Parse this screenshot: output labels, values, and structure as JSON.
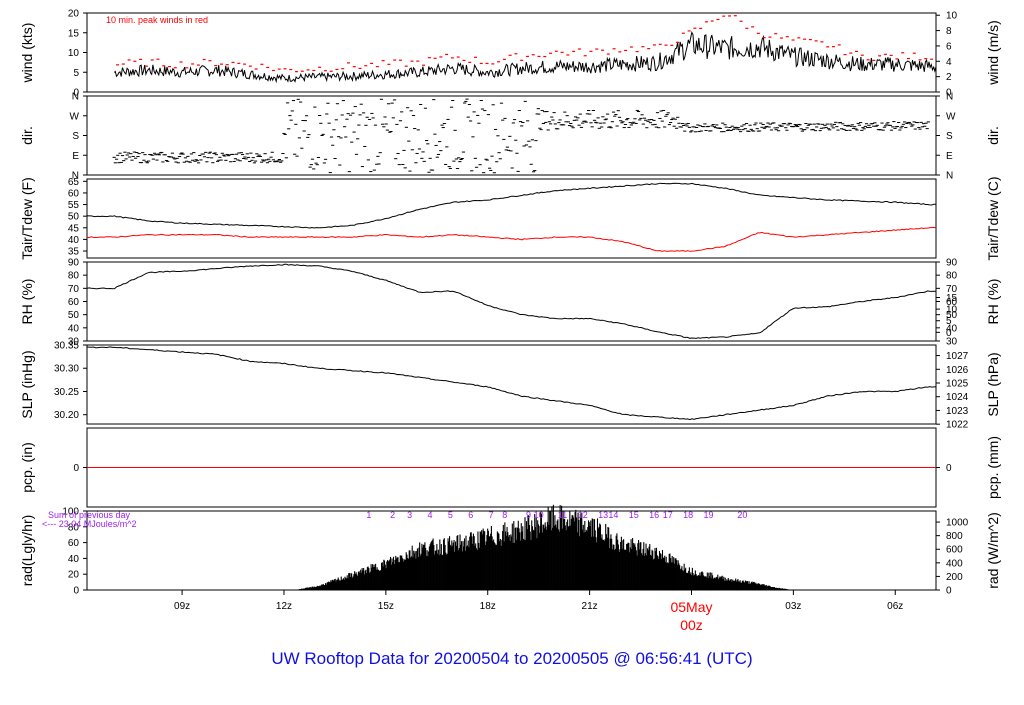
{
  "footer_title": "UW Rooftop Data for 20200504  to  20200505 @ 06:56:41  (UTC)",
  "colors": {
    "series": "#000000",
    "peak": "#ff0000",
    "tdew": "#ff0000",
    "pcp": "#ff0000",
    "annot": "#a020f0",
    "title": "#1010e0",
    "axes": "#000000"
  },
  "chart_data": [
    {
      "id": "wind",
      "type": "line",
      "ylabel_left": "wind (kts)",
      "ylabel_right": "wind (m/s)",
      "ylim": [
        0,
        20
      ],
      "yticks_left": [
        0,
        5,
        10,
        15,
        20
      ],
      "yticks_right": [
        0,
        2,
        4,
        6,
        8,
        10
      ],
      "right_scale": 0.51444,
      "annotation": "10 min. peak winds in red",
      "series": [
        {
          "role": "speed",
          "x": [
            7,
            8,
            9,
            10,
            11,
            12,
            13,
            14,
            15,
            16,
            17,
            18,
            19,
            20,
            21,
            22,
            23,
            24,
            25,
            26,
            27,
            28,
            29,
            30,
            31
          ],
          "values": [
            5,
            5.5,
            5,
            5.5,
            4.5,
            3.5,
            3.8,
            4,
            4.5,
            5,
            6,
            5,
            6,
            6.5,
            6.5,
            7,
            7.5,
            12,
            11,
            11.5,
            9,
            8,
            7,
            7,
            6.5
          ]
        },
        {
          "role": "peak",
          "x": [
            7,
            8,
            9,
            10,
            11,
            12,
            13,
            14,
            15,
            16,
            17,
            18,
            19,
            20,
            21,
            22,
            23,
            24,
            25,
            26,
            27,
            28,
            29,
            30,
            31
          ],
          "values": [
            7,
            7.5,
            7,
            7.5,
            7,
            5.5,
            6,
            6.5,
            7,
            7.5,
            9,
            7.5,
            9,
            10,
            10,
            11,
            11,
            15,
            20,
            15,
            13,
            12,
            9,
            9,
            9
          ]
        }
      ]
    },
    {
      "id": "dir",
      "type": "scatter",
      "ylabel_left": "dir.",
      "ylabel_right": "dir.",
      "ylim": [
        0,
        360
      ],
      "ytick_labels": [
        "N",
        "E",
        "S",
        "W",
        "N"
      ],
      "ytick_values": [
        0,
        90,
        180,
        270,
        360
      ],
      "segments": [
        {
          "x": [
            7,
            12
          ],
          "values": [
            80,
            80
          ],
          "spread": 25
        },
        {
          "x": [
            12,
            19.5
          ],
          "values": [
            180,
            180
          ],
          "spread": 170
        },
        {
          "x": [
            19.5,
            23.8
          ],
          "values": [
            250,
            250
          ],
          "spread": 45
        },
        {
          "x": [
            23.8,
            31
          ],
          "values": [
            215,
            225
          ],
          "spread": 20
        }
      ]
    },
    {
      "id": "temp",
      "type": "line",
      "ylabel_left": "Tair/Tdew (F)",
      "ylabel_right": "Tair/Tdew (C)",
      "ylim": [
        32,
        66
      ],
      "yticks_left": [
        35,
        40,
        45,
        50,
        55,
        60,
        65
      ],
      "yticks_right": [
        0,
        5,
        10,
        15
      ],
      "series": [
        {
          "role": "tair",
          "x": [
            7,
            8,
            9,
            10,
            11,
            12,
            13,
            14,
            15,
            16,
            17,
            18,
            19,
            20,
            21,
            22,
            23,
            24,
            25,
            26,
            27,
            28,
            29,
            30,
            31
          ],
          "values": [
            50,
            48,
            47,
            46.5,
            46,
            45.5,
            45,
            46,
            49,
            53,
            56,
            57,
            59,
            61,
            62,
            63,
            64,
            64,
            62,
            59,
            58,
            57,
            56.5,
            56,
            55
          ]
        },
        {
          "role": "tdew",
          "x": [
            7,
            8,
            9,
            10,
            11,
            12,
            13,
            14,
            15,
            16,
            17,
            18,
            19,
            20,
            21,
            22,
            23,
            24,
            25,
            26,
            27,
            28,
            29,
            30,
            31
          ],
          "values": [
            41,
            42,
            42,
            42,
            41,
            41,
            41,
            41,
            42,
            41,
            42,
            41,
            40,
            41,
            41,
            39,
            35,
            35,
            37,
            43,
            41,
            42,
            43,
            44,
            45
          ]
        }
      ]
    },
    {
      "id": "rh",
      "type": "line",
      "ylabel_left": "RH (%)",
      "ylabel_right": "RH (%)",
      "ylim": [
        30,
        90
      ],
      "yticks_left": [
        30,
        40,
        50,
        60,
        70,
        80,
        90
      ],
      "yticks_right": [
        30,
        40,
        50,
        60,
        70,
        80,
        90
      ],
      "series": [
        {
          "role": "rh",
          "x": [
            7,
            8,
            9,
            10,
            11,
            12,
            13,
            14,
            15,
            16,
            17,
            18,
            19,
            20,
            21,
            22,
            23,
            24,
            25,
            26,
            27,
            28,
            29,
            30,
            31
          ],
          "values": [
            70,
            82,
            83,
            85,
            87,
            88,
            87,
            83,
            76,
            67,
            68,
            57,
            50,
            47,
            47,
            43,
            37,
            32,
            33,
            36,
            55,
            56,
            60,
            63,
            68
          ]
        }
      ]
    },
    {
      "id": "slp",
      "type": "line",
      "ylabel_left": "SLP (inHg)",
      "ylabel_right": "SLP (hPa)",
      "ylim": [
        30.18,
        30.35
      ],
      "yticks_left": [
        30.2,
        30.25,
        30.3,
        30.35
      ],
      "ytick_labels_left": [
        "30.20",
        "30.25",
        "30.30",
        "30.35"
      ],
      "yticks_right": [
        1022,
        1023,
        1024,
        1025,
        1026,
        1027
      ],
      "right_scale": 33.8639,
      "series": [
        {
          "role": "slp",
          "x": [
            7,
            8,
            9,
            10,
            11,
            12,
            13,
            14,
            15,
            16,
            17,
            18,
            19,
            20,
            21,
            22,
            23,
            24,
            25,
            26,
            27,
            28,
            29,
            30,
            31
          ],
          "values": [
            30.345,
            30.34,
            30.335,
            30.33,
            30.315,
            30.31,
            30.3,
            30.295,
            30.29,
            30.28,
            30.27,
            30.26,
            30.24,
            30.23,
            30.22,
            30.2,
            30.195,
            30.19,
            30.2,
            30.21,
            30.22,
            30.24,
            30.25,
            30.25,
            30.26
          ]
        }
      ]
    },
    {
      "id": "pcp",
      "type": "line",
      "ylabel_left": "pcp. (in)",
      "ylabel_right": "pcp. (mm)",
      "ylim": [
        -1,
        1
      ],
      "yticks_left": [
        0
      ],
      "yticks_right": [
        0
      ],
      "series": [
        {
          "role": "pcp",
          "x": [
            6.2,
            31.2
          ],
          "values": [
            0,
            0
          ]
        }
      ]
    },
    {
      "id": "rad",
      "type": "area",
      "ylabel_left": "rad(Lgly/hr)",
      "ylabel_right": "rad (W/m^2)",
      "ylim": [
        0,
        100
      ],
      "yticks_left": [
        0,
        20,
        40,
        60,
        80,
        100
      ],
      "yticks_right": [
        0,
        200,
        400,
        600,
        800,
        1000
      ],
      "right_scale": 11.63,
      "sum_label": "Sum of previous day",
      "sum_value": "<--- 23.04 MJoules/m^2",
      "hour_labels": [
        "1",
        "2",
        "3",
        "4",
        "5",
        "6",
        "7",
        "8",
        "9",
        "10",
        "11",
        "12",
        "13",
        "14",
        "15",
        "16",
        "17",
        "18",
        "19",
        "20"
      ],
      "hour_x": [
        14.5,
        15.2,
        15.7,
        16.3,
        16.9,
        17.5,
        18.1,
        18.5,
        19.2,
        19.5,
        20.2,
        20.8,
        21.4,
        21.7,
        22.3,
        22.9,
        23.3,
        23.9,
        24.5,
        25.5
      ],
      "series": [
        {
          "role": "rad",
          "x": [
            12.3,
            13,
            14,
            15,
            16,
            17,
            18,
            19,
            20,
            20.5,
            21,
            22,
            23,
            24,
            25,
            26,
            26.5,
            27
          ],
          "values": [
            0,
            5,
            20,
            35,
            55,
            60,
            70,
            80,
            95,
            90,
            85,
            60,
            50,
            25,
            15,
            8,
            3,
            0
          ]
        }
      ]
    }
  ],
  "x_axis": {
    "xlim": [
      6.2,
      31.2
    ],
    "tick_values": [
      9,
      12,
      15,
      18,
      21,
      27,
      30
    ],
    "tick_labels": [
      "09z",
      "12z",
      "15z",
      "18z",
      "21z",
      "03z",
      "06z"
    ],
    "date_value": 24,
    "date_label": "05May",
    "date_sublabel": "00z"
  }
}
